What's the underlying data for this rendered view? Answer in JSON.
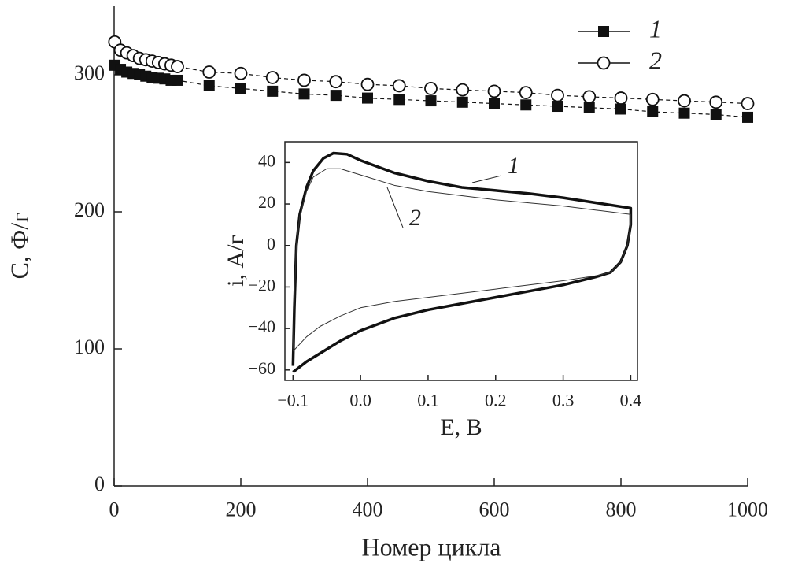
{
  "chart_data": [
    {
      "type": "line",
      "x_label": "Номер цикла",
      "y_label": "C, Ф/г",
      "xlim": [
        0,
        1000
      ],
      "xticks": [
        0,
        200,
        400,
        600,
        800,
        1000
      ],
      "ylim": [
        0,
        350
      ],
      "yticks": [
        0,
        100,
        200,
        300
      ],
      "legend": "upper right",
      "linestyle": "dashed",
      "series": [
        {
          "name": "1",
          "color": "#111111",
          "marker": "square",
          "x": [
            1,
            10,
            20,
            30,
            40,
            50,
            60,
            70,
            80,
            90,
            100,
            150,
            200,
            250,
            300,
            350,
            400,
            450,
            500,
            550,
            600,
            650,
            700,
            750,
            800,
            850,
            900,
            950,
            1000
          ],
          "values": [
            307,
            304,
            302,
            301,
            300,
            299,
            298,
            297.5,
            297,
            296,
            296,
            292,
            290,
            288,
            286,
            285,
            283,
            282,
            281,
            280,
            279,
            278,
            277,
            276,
            275,
            273,
            272,
            271,
            269
          ]
        },
        {
          "name": "2",
          "color": "#111111",
          "marker": "circle",
          "x": [
            1,
            10,
            20,
            30,
            40,
            50,
            60,
            70,
            80,
            90,
            100,
            150,
            200,
            250,
            300,
            350,
            400,
            450,
            500,
            550,
            600,
            650,
            700,
            750,
            800,
            850,
            900,
            950,
            1000
          ],
          "values": [
            324,
            318,
            316,
            314,
            312,
            311,
            310,
            309,
            308,
            307,
            306,
            302,
            301,
            298,
            296,
            295,
            293,
            292,
            290,
            289,
            288,
            287,
            285,
            284,
            283,
            282,
            281,
            280,
            279
          ]
        }
      ]
    },
    {
      "type": "line",
      "x_label": "E, В",
      "y_label": "i, А/г",
      "xlim": [
        -0.112,
        0.41
      ],
      "xticks": [
        {
          "value": -0.1,
          "label": "−0.1"
        },
        {
          "value": 0,
          "label": "0.0"
        },
        0.1,
        0.2,
        0.3,
        0.4
      ],
      "ylim": [
        -65,
        50
      ],
      "yticks": [
        {
          "value": -60,
          "label": "−60"
        },
        {
          "value": -40,
          "label": "−40"
        },
        {
          "value": -20,
          "label": "−20"
        },
        0,
        20,
        40
      ],
      "series": [
        {
          "name": "1",
          "color": "#111111",
          "linewidth": 3.5,
          "x": [
            -0.1,
            -0.098,
            -0.095,
            -0.09,
            -0.08,
            -0.07,
            -0.055,
            -0.04,
            -0.02,
            0.0,
            0.05,
            0.1,
            0.15,
            0.2,
            0.25,
            0.3,
            0.35,
            0.4,
            0.4,
            0.395,
            0.385,
            0.37,
            0.35,
            0.3,
            0.25,
            0.2,
            0.15,
            0.1,
            0.05,
            0.0,
            -0.03,
            -0.06,
            -0.08,
            -0.1
          ],
          "values": [
            -58,
            -30,
            0,
            15,
            28,
            36,
            42,
            44.5,
            44,
            41,
            35,
            31,
            28,
            26.5,
            25,
            23,
            20.5,
            18,
            10,
            0,
            -8,
            -13,
            -15,
            -19,
            -22,
            -25,
            -28,
            -31,
            -35,
            -41,
            -46,
            -52,
            -56,
            -61
          ]
        },
        {
          "name": "2",
          "color": "#333333",
          "linewidth": 1,
          "x": [
            -0.1,
            -0.098,
            -0.095,
            -0.09,
            -0.08,
            -0.07,
            -0.05,
            -0.03,
            0.0,
            0.05,
            0.1,
            0.15,
            0.2,
            0.25,
            0.3,
            0.35,
            0.4,
            0.4,
            0.395,
            0.385,
            0.37,
            0.35,
            0.3,
            0.25,
            0.2,
            0.15,
            0.1,
            0.05,
            0.0,
            -0.03,
            -0.06,
            -0.08,
            -0.1
          ],
          "values": [
            -50,
            -25,
            0,
            14,
            26,
            33,
            37,
            37,
            34,
            29,
            26,
            24,
            22,
            20.5,
            19,
            17,
            15,
            10,
            0,
            -8,
            -13,
            -14.5,
            -17,
            -19,
            -21,
            -23,
            -25,
            -27,
            -30,
            -34,
            -39,
            -44,
            -51
          ]
        }
      ]
    }
  ]
}
